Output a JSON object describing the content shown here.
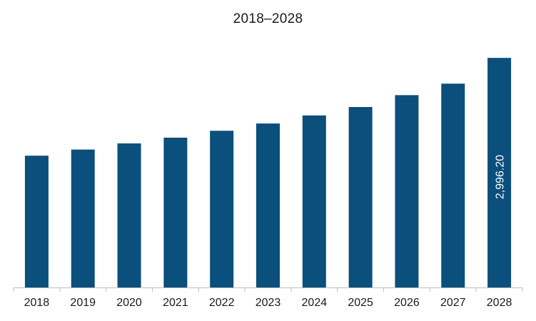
{
  "chart_data": {
    "type": "bar",
    "title": "2018–2028",
    "xlabel": "",
    "ylabel": "",
    "categories": [
      "2018",
      "2019",
      "2020",
      "2021",
      "2022",
      "2023",
      "2024",
      "2025",
      "2026",
      "2027",
      "2028"
    ],
    "values": [
      1720,
      1800,
      1880,
      1955,
      2045,
      2140,
      2245,
      2355,
      2510,
      2660,
      2996.2
    ],
    "data_labels": [
      {
        "category": "2028",
        "text": "2,996.20"
      }
    ],
    "ylim": [
      0,
      3100
    ],
    "grid": false,
    "legend": "none",
    "colors": {
      "bar": "#0b4f7c",
      "axis": "#bfbfbf",
      "text": "#1a1a1a",
      "label_text": "#ffffff"
    }
  }
}
